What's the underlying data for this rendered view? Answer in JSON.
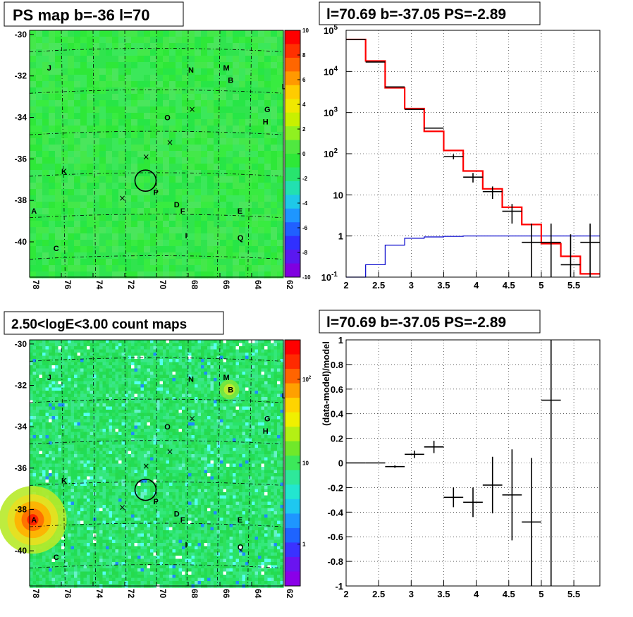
{
  "panels": {
    "ps_map": {
      "title": "PS map b=-36 l=70"
    },
    "spectrum": {
      "title": "l=70.69 b=-37.05 PS=-2.89"
    },
    "count_map": {
      "title": "2.50<logE<3.00 count maps"
    },
    "residual": {
      "title": "l=70.69 b=-37.05 PS=-2.89"
    }
  },
  "colors": {
    "map_background": "#2ee838",
    "map_background_alt": "#3be85a",
    "count_background": "#28e46a",
    "data": "#000000",
    "model": "#ff0000",
    "psf_model": "#0000cc",
    "grid": "#000000"
  },
  "chart_data": [
    {
      "type": "heatmap",
      "name_panel": "ps_map",
      "title": "PS map b=-36 l=70",
      "x_ticks": [
        "78",
        "76",
        "74",
        "72",
        "70",
        "68",
        "66",
        "64",
        "62"
      ],
      "xlim": [
        78,
        62
      ],
      "y_ticks": [
        "-30",
        "-32",
        "-34",
        "-36",
        "-38",
        "-40"
      ],
      "ylim": [
        -41.7,
        -29.8
      ],
      "colorbar": {
        "ticks": [
          "10",
          "8",
          "6",
          "4",
          "2",
          "0",
          "-2",
          "-4",
          "-6",
          "-8",
          "-10"
        ],
        "range": [
          -10,
          10
        ]
      },
      "sources": [
        {
          "label": "J",
          "l": 76.9,
          "b": -31.6
        },
        {
          "label": "N",
          "l": 68.0,
          "b": -31.7
        },
        {
          "label": "M",
          "l": 65.8,
          "b": -31.6
        },
        {
          "label": "B",
          "l": 65.5,
          "b": -32.2
        },
        {
          "label": "L",
          "l": 62.1,
          "b": -32.5
        },
        {
          "label": "G",
          "l": 63.2,
          "b": -33.6
        },
        {
          "label": "O",
          "l": 69.5,
          "b": -34.0
        },
        {
          "label": "H",
          "l": 63.3,
          "b": -34.2
        },
        {
          "label": "K",
          "l": 76.0,
          "b": -36.6
        },
        {
          "label": "P",
          "l": 70.2,
          "b": -37.6
        },
        {
          "label": "D",
          "l": 68.9,
          "b": -38.2
        },
        {
          "label": "F",
          "l": 68.5,
          "b": -38.5
        },
        {
          "label": "A",
          "l": 77.9,
          "b": -38.5
        },
        {
          "label": "E",
          "l": 64.9,
          "b": -38.5
        },
        {
          "label": "I",
          "l": 68.2,
          "b": -39.7
        },
        {
          "label": "Q",
          "l": 64.9,
          "b": -39.8
        },
        {
          "label": "C",
          "l": 76.5,
          "b": -40.3
        }
      ],
      "crosses": [
        {
          "l": 67.8,
          "b": -33.6
        },
        {
          "l": 69.2,
          "b": -35.2
        },
        {
          "l": 70.7,
          "b": -35.9
        },
        {
          "l": 72.2,
          "b": -37.9
        }
      ],
      "circle": {
        "l": 70.69,
        "b": -37.05
      }
    },
    {
      "type": "line",
      "name_panel": "spectrum",
      "title": "l=70.69 b=-37.05 PS=-2.89",
      "xlim": [
        2,
        5.9
      ],
      "x_ticks": [
        "2",
        "2.5",
        "3",
        "3.5",
        "4",
        "4.5",
        "5",
        "5.5"
      ],
      "y_log": true,
      "ylim": [
        0.1,
        100000
      ],
      "y_ticks": [
        "10^-1",
        "1",
        "10",
        "10^2",
        "10^3",
        "10^4",
        "10^5"
      ],
      "grid": true,
      "series": [
        {
          "role": "data",
          "x": [
            2.15,
            2.45,
            2.75,
            3.05,
            3.35,
            3.65,
            3.95,
            4.25,
            4.55,
            4.85,
            5.15,
            5.45,
            5.75
          ],
          "xerr": 0.15,
          "y": [
            60000,
            17000,
            4200,
            1200,
            420,
            85,
            27,
            12,
            4,
            0.7,
            0.7,
            0.2,
            0.7
          ],
          "yerr_low": [
            0,
            0,
            0,
            0,
            0,
            12,
            7,
            4,
            2,
            0.6,
            0.6,
            0.15,
            0.6
          ],
          "yerr_high": [
            0,
            0,
            0,
            0,
            0,
            12,
            7,
            4,
            2,
            1.3,
            1.3,
            0.9,
            1.3
          ]
        },
        {
          "role": "model",
          "bins": [
            2.0,
            2.3,
            2.6,
            2.9,
            3.2,
            3.5,
            3.8,
            4.1,
            4.4,
            4.7,
            5.0,
            5.3,
            5.6,
            5.9
          ],
          "y": [
            60000,
            18000,
            4000,
            1250,
            350,
            120,
            38,
            14,
            5,
            1.9,
            0.65,
            0.32,
            0.12
          ]
        },
        {
          "role": "psf",
          "bins": [
            2.0,
            2.3,
            2.6,
            2.9,
            3.2,
            3.5,
            3.8,
            4.1,
            4.4,
            4.7,
            5.0,
            5.3,
            5.6,
            5.9
          ],
          "y": [
            0.1,
            0.2,
            0.6,
            0.88,
            0.95,
            0.98,
            1.0,
            1.0,
            1.0,
            1.0,
            1.0,
            1.0,
            1.0
          ]
        }
      ]
    },
    {
      "type": "heatmap",
      "name_panel": "count_map",
      "title": "2.50<logE<3.00 count maps",
      "x_ticks": [
        "78",
        "76",
        "74",
        "72",
        "70",
        "68",
        "66",
        "64",
        "62"
      ],
      "xlim": [
        78,
        62
      ],
      "y_ticks": [
        "-30",
        "-32",
        "-34",
        "-36",
        "-38",
        "-40"
      ],
      "ylim": [
        -41.7,
        -29.8
      ],
      "colorbar": {
        "log": true,
        "ticks": [
          "10^2",
          "10",
          "1"
        ]
      },
      "bright_sources": [
        {
          "label": "A",
          "l": 77.8,
          "b": -38.5,
          "strength": 1.0
        },
        {
          "label": "B",
          "l": 65.4,
          "b": -32.2,
          "strength": 0.35
        }
      ]
    },
    {
      "type": "scatter",
      "name_panel": "residual",
      "title": "l=70.69 b=-37.05 PS=-2.89",
      "ylabel": "(data-model)/model",
      "xlim": [
        2,
        5.9
      ],
      "x_ticks": [
        "2",
        "2.5",
        "3",
        "3.5",
        "4",
        "4.5",
        "5",
        "5.5"
      ],
      "ylim": [
        -1,
        1
      ],
      "y_ticks": [
        "1",
        "0.8",
        "0.6",
        "0.4",
        "0.2",
        "0",
        "-0.2",
        "-0.4",
        "-0.6",
        "-0.8",
        "-1"
      ],
      "grid": true,
      "points": [
        {
          "x": 2.15,
          "y": 0.0,
          "xerr": 0.15,
          "yerr": 0.0
        },
        {
          "x": 2.45,
          "y": 0.0,
          "xerr": 0.15,
          "yerr": 0.0
        },
        {
          "x": 2.75,
          "y": -0.03,
          "xerr": 0.15,
          "yerr": 0.01
        },
        {
          "x": 3.05,
          "y": 0.07,
          "xerr": 0.15,
          "yerr": 0.03
        },
        {
          "x": 3.35,
          "y": 0.13,
          "xerr": 0.15,
          "yerr": 0.05
        },
        {
          "x": 3.65,
          "y": -0.28,
          "xerr": 0.15,
          "yerr": 0.08
        },
        {
          "x": 3.95,
          "y": -0.32,
          "xerr": 0.15,
          "yerr": 0.12
        },
        {
          "x": 4.25,
          "y": -0.18,
          "xerr": 0.15,
          "yerr": 0.23
        },
        {
          "x": 4.55,
          "y": -0.26,
          "xerr": 0.15,
          "yerr": 0.37
        },
        {
          "x": 4.85,
          "y": -0.48,
          "xerr": 0.15,
          "yerr": 0.52
        },
        {
          "x": 5.15,
          "y": 0.51,
          "xerr": 0.15,
          "yerr": 1.6
        }
      ]
    }
  ]
}
